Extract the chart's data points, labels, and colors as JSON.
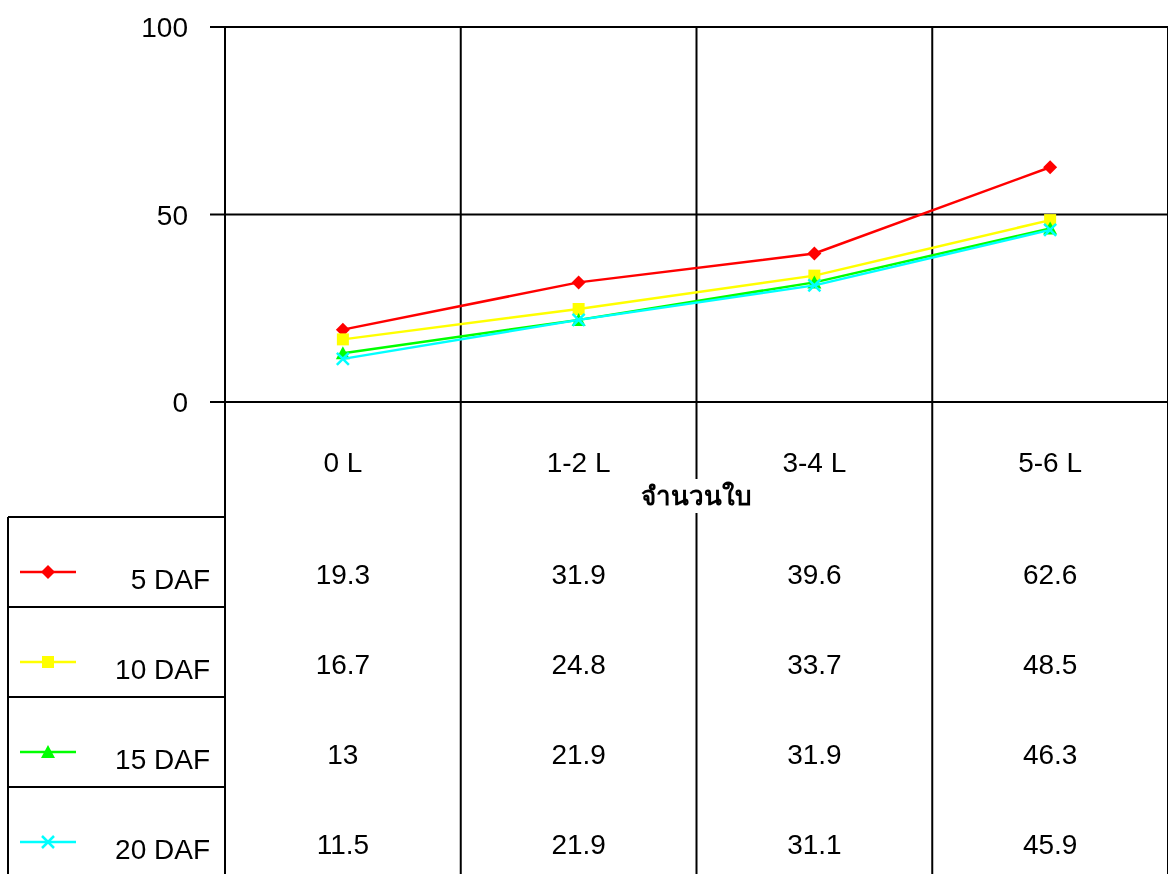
{
  "chart_data": {
    "type": "line",
    "xlabel": "จำนวนใบ",
    "categories": [
      "0 L",
      "1-2 L",
      "3-4 L",
      "5-6 L"
    ],
    "series": [
      {
        "name": "5 DAF",
        "color": "#ff0000",
        "marker": "diamond",
        "values": [
          19.3,
          31.9,
          39.6,
          62.6
        ]
      },
      {
        "name": "10 DAF",
        "color": "#ffff00",
        "marker": "square",
        "values": [
          16.7,
          24.8,
          33.7,
          48.5
        ]
      },
      {
        "name": "15 DAF",
        "color": "#00ff00",
        "marker": "triangle",
        "values": [
          13,
          21.9,
          31.9,
          46.3
        ]
      },
      {
        "name": "20 DAF",
        "color": "#00ffff",
        "marker": "cross",
        "values": [
          11.5,
          21.9,
          31.1,
          45.9
        ]
      }
    ],
    "ylim": [
      0,
      100
    ],
    "yticks": [
      0,
      50,
      100
    ],
    "grid": true,
    "legend": "bottom",
    "data_labels": true
  }
}
